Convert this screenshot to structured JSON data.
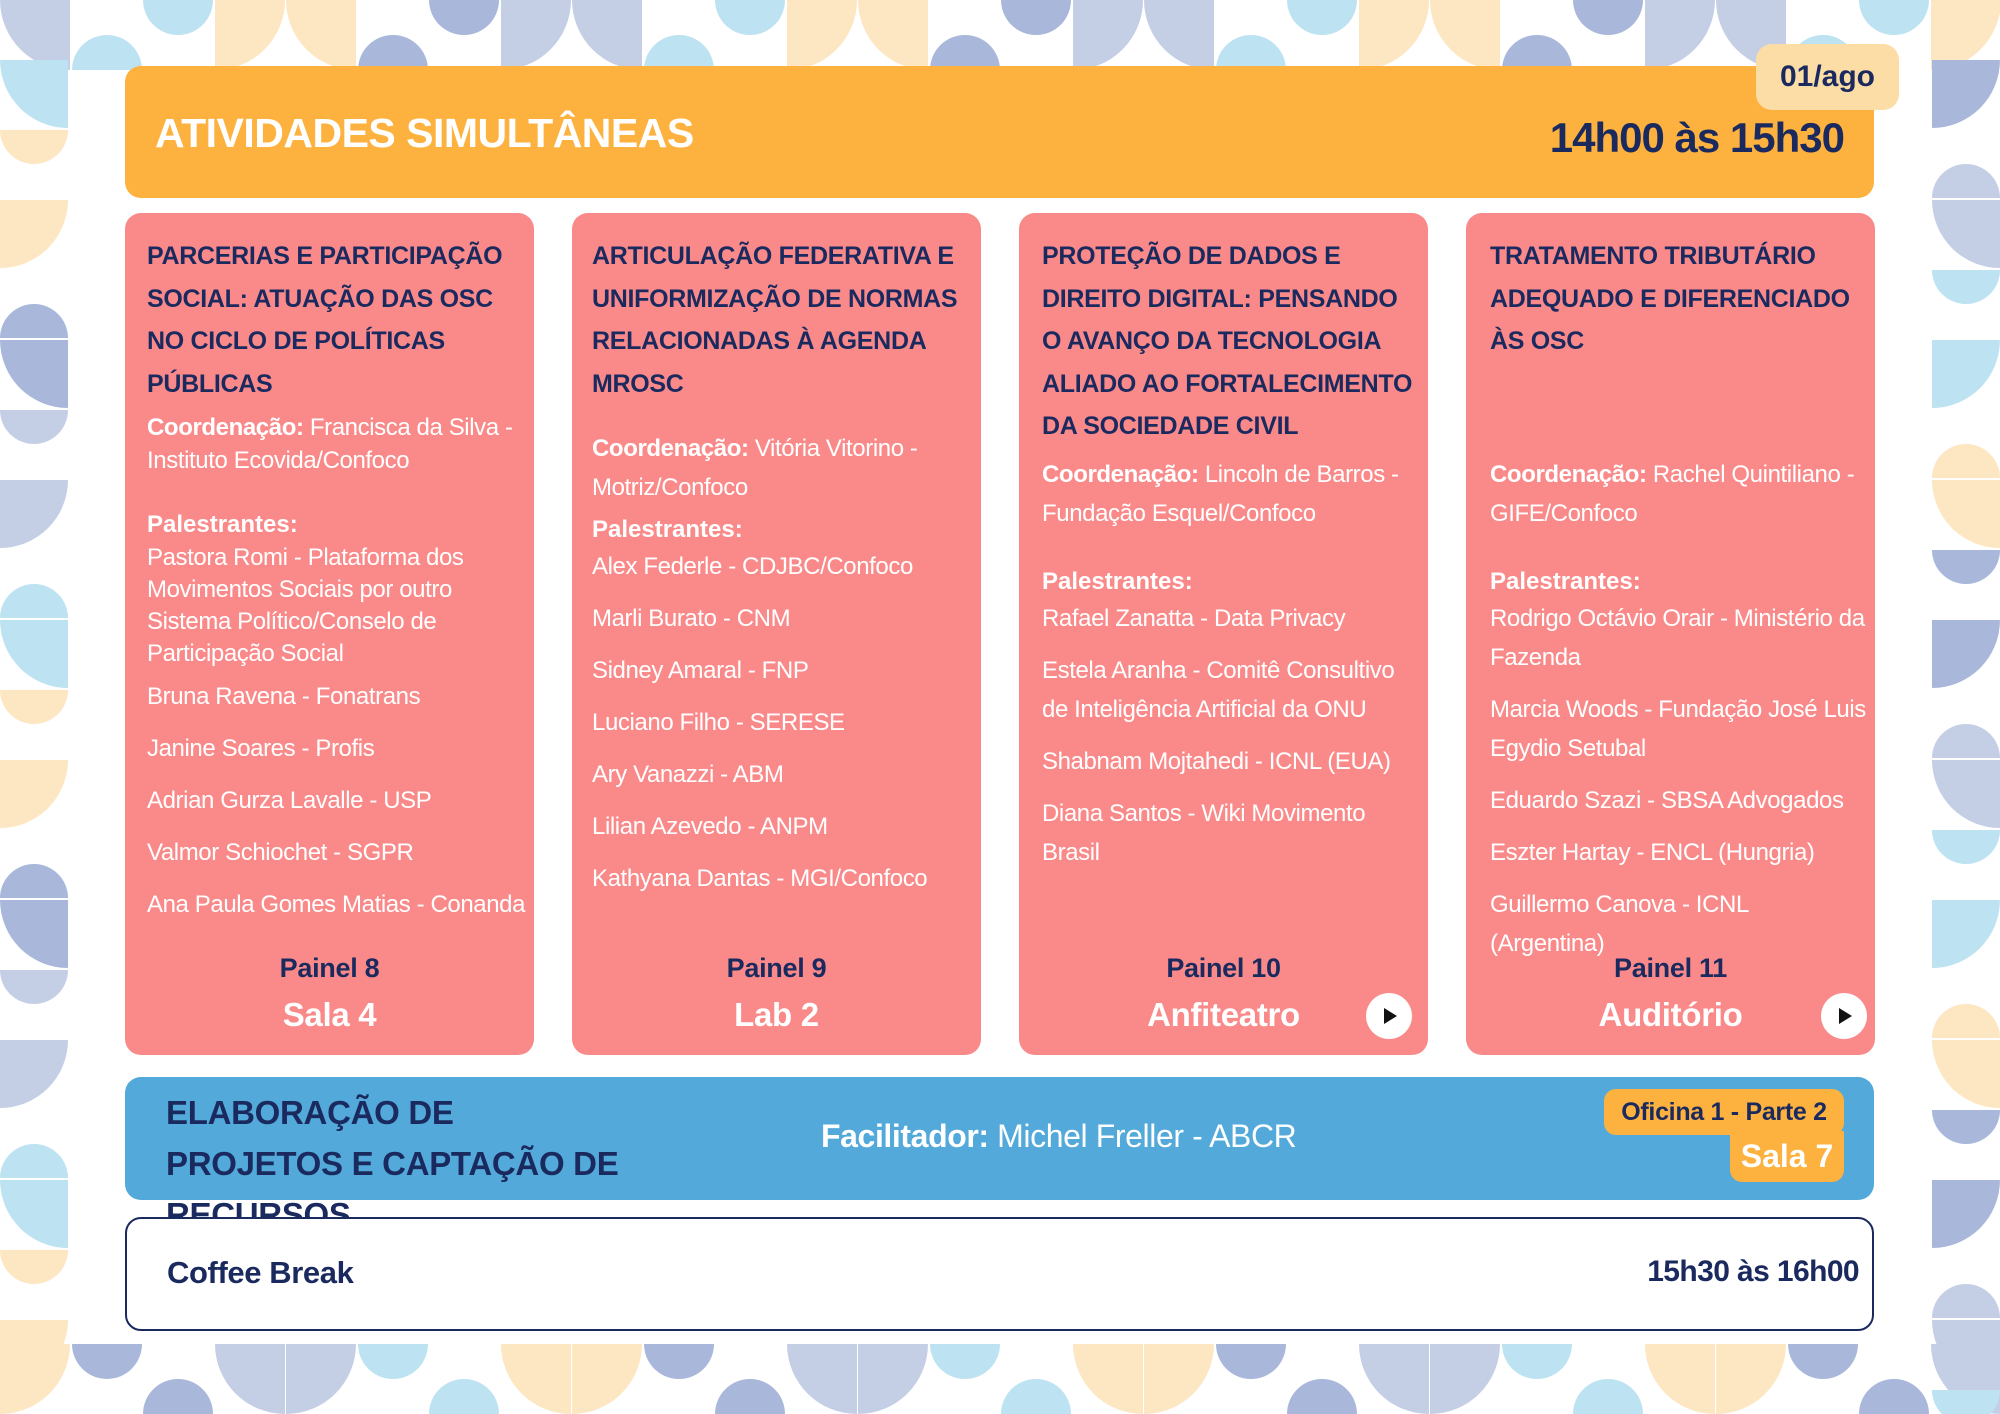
{
  "header": {
    "title": "ATIVIDADES SIMULTÂNEAS",
    "date": "01/ago",
    "time": "14h00 às 15h30"
  },
  "labels": {
    "coord": "Coordenação:",
    "speakers": "Palestrantes:"
  },
  "panels": [
    {
      "title": "PARCERIAS E PARTICIPAÇÃO SOCIAL: ATUAÇÃO DAS OSC NO CICLO DE POLÍTICAS PÚBLICAS",
      "coordinator": "Francisca da Silva - Instituto Ecovida/Confoco",
      "speakers": [
        "Pastora Romi - Plataforma dos Movimentos Sociais por outro Sistema Político/Conselo de Participação Social",
        "Bruna Ravena - Fonatrans",
        "Janine Soares - Profis",
        "Adrian Gurza Lavalle - USP",
        "Valmor Schiochet - SGPR",
        "Ana Paula Gomes Matias - Conanda"
      ],
      "panel": "Painel 8",
      "room": "Sala 4"
    },
    {
      "title": "ARTICULAÇÃO FEDERATIVA E UNIFORMIZAÇÃO DE NORMAS RELACIONADAS À AGENDA MROSC",
      "coordinator": "Vitória Vitorino - Motriz/Confoco",
      "speakers": [
        "Alex Federle - CDJBC/Confoco",
        "Marli Burato - CNM",
        "Sidney Amaral - FNP",
        "Luciano Filho -  SERESE",
        "Ary Vanazzi - ABM",
        "Lilian Azevedo - ANPM",
        "Kathyana Dantas - MGI/Confoco"
      ],
      "panel": "Painel 9",
      "room": "Lab 2"
    },
    {
      "title": "PROTEÇÃO DE DADOS E DIREITO DIGITAL: PENSANDO O AVANÇO DA TECNOLOGIA ALIADO AO FORTALECIMENTO DA SOCIEDADE CIVIL",
      "coordinator": "Lincoln de Barros - Fundação Esquel/Confoco",
      "speakers": [
        "Rafael Zanatta - Data Privacy",
        "Estela Aranha - Comitê Consultivo de Inteligência Artificial da ONU",
        "Shabnam Mojtahedi - ICNL (EUA)",
        "Diana Santos - Wiki Movimento Brasil"
      ],
      "panel": "Painel 10",
      "room": "Anfiteatro"
    },
    {
      "title": "TRATAMENTO TRIBUTÁRIO ADEQUADO E DIFERENCIADO ÀS OSC",
      "coordinator": "Rachel Quintiliano - GIFE/Confoco",
      "speakers": [
        "Rodrigo Octávio Orair - Ministério da Fazenda",
        "Marcia Woods - Fundação José Luis Egydio Setubal",
        "Eduardo Szazi - SBSA Advogados",
        "Eszter Hartay - ENCL (Hungria)",
        "Guillermo Canova - ICNL (Argentina)"
      ],
      "panel": "Painel 11",
      "room": "Auditório"
    }
  ],
  "workshop": {
    "title": "ELABORAÇÃO DE PROJETOS E CAPTAÇÃO DE RECURSOS",
    "facilitator_label": "Facilitador:",
    "facilitator": "Michel Freller - ABCR",
    "badge": "Oficina 1  - Parte 2",
    "room": "Sala 7"
  },
  "break": {
    "label": "Coffee Break",
    "time": "15h30 às 16h00"
  },
  "colors": {
    "header": "#fdb23f",
    "card": "#fa8a8a",
    "workshop": "#52a9da",
    "navy": "#1b2a5e",
    "badge_light": "#fddda6"
  },
  "icons": {
    "play": "play-icon"
  }
}
